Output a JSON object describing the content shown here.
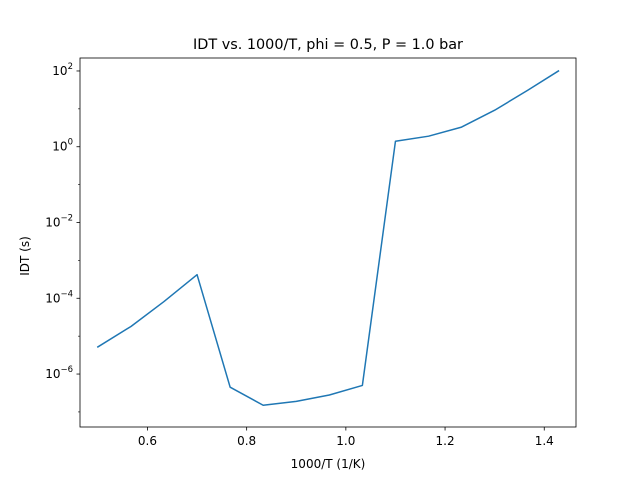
{
  "chart_data": {
    "type": "line",
    "title": "IDT vs. 1000/T, phi = 0.5, P = 1.0 bar",
    "xlabel": "1000/T (1/K)",
    "ylabel": "IDT (s)",
    "yscale": "log",
    "xlim": [
      0.464,
      1.464
    ],
    "ylim": [
      4e-08,
      220
    ],
    "grid": false,
    "x_ticks": [
      {
        "value": 0.6,
        "label": "0.6"
      },
      {
        "value": 0.8,
        "label": "0.8"
      },
      {
        "value": 1.0,
        "label": "1.0"
      },
      {
        "value": 1.2,
        "label": "1.2"
      },
      {
        "value": 1.4,
        "label": "1.4"
      }
    ],
    "y_ticks": [
      {
        "value": 1e-06,
        "base": "10",
        "exp": "−6"
      },
      {
        "value": 0.0001,
        "base": "10",
        "exp": "−4"
      },
      {
        "value": 0.01,
        "base": "10",
        "exp": "−2"
      },
      {
        "value": 1,
        "base": "10",
        "exp": "0"
      },
      {
        "value": 100,
        "base": "10",
        "exp": "2"
      }
    ],
    "color": "#1f77b4",
    "series": [
      {
        "x": [
          0.5,
          0.5667,
          0.6333,
          0.7,
          0.7667,
          0.8333,
          0.9,
          0.9667,
          1.0333,
          1.1,
          1.1667,
          1.2333,
          1.3,
          1.3667,
          1.4286
        ],
        "y": [
          5.2e-06,
          1.8e-05,
          8.2e-05,
          0.00042,
          4.5e-07,
          1.5e-07,
          1.9e-07,
          2.8e-07,
          5e-07,
          1.4,
          1.9,
          3.3,
          9.2,
          31,
          100
        ]
      }
    ]
  }
}
